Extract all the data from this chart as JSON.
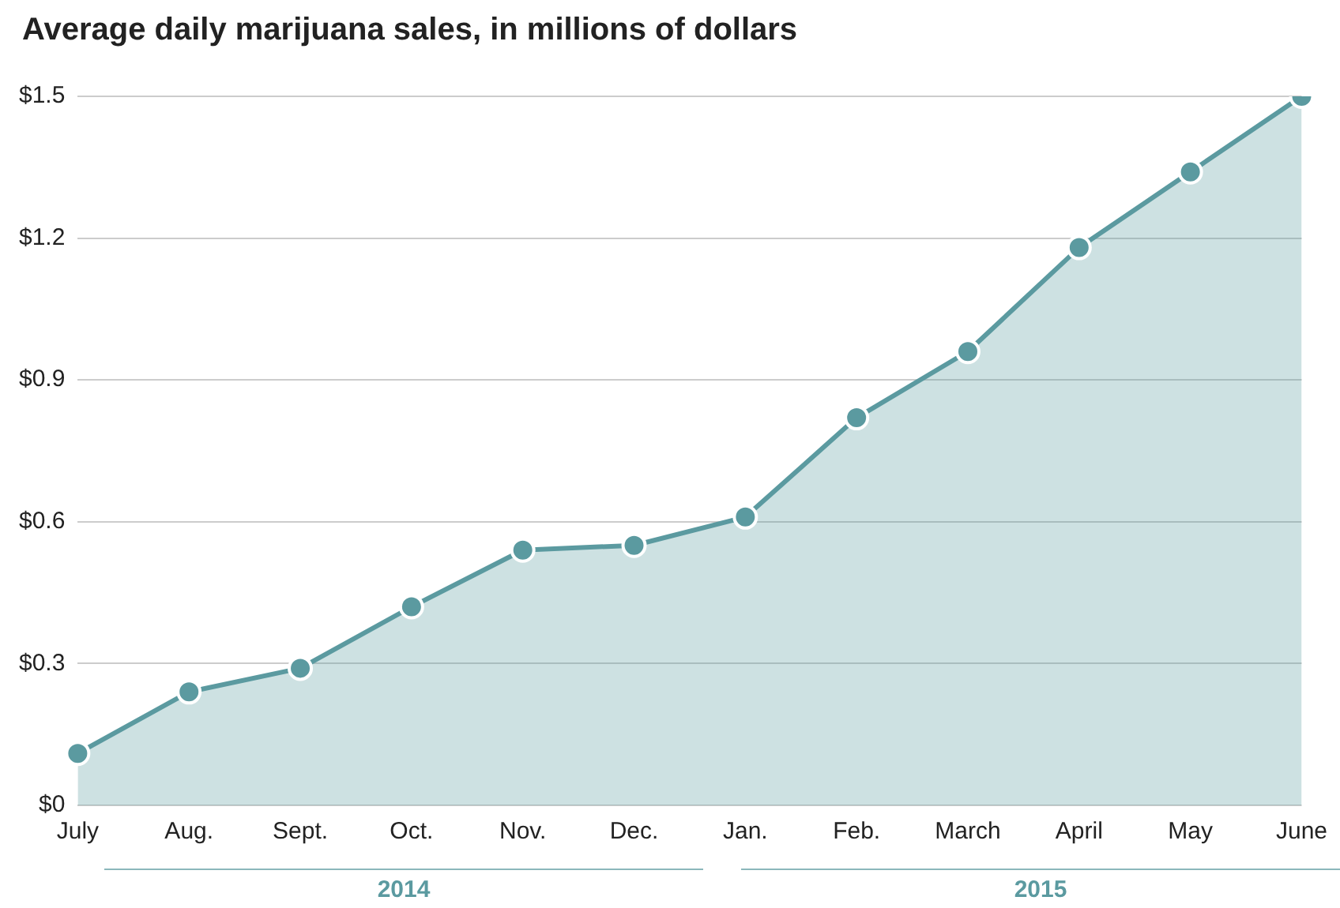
{
  "chart_data": {
    "type": "area",
    "title": "Average daily marijuana sales, in millions of dollars",
    "categories": [
      "July",
      "Aug.",
      "Sept.",
      "Oct.",
      "Nov.",
      "Dec.",
      "Jan.",
      "Feb.",
      "March",
      "April",
      "May",
      "June"
    ],
    "series": [
      {
        "color": "#5b9aa0",
        "values": [
          0.11,
          0.24,
          0.29,
          0.42,
          0.54,
          0.55,
          0.61,
          0.82,
          0.96,
          1.18,
          1.34,
          1.5
        ]
      }
    ],
    "ylim": [
      0,
      1.5
    ],
    "yticks": [
      {
        "value": 0,
        "label": "$0"
      },
      {
        "value": 0.3,
        "label": "$0.3"
      },
      {
        "value": 0.6,
        "label": "$0.6"
      },
      {
        "value": 0.9,
        "label": "$0.9"
      },
      {
        "value": 1.2,
        "label": "$1.2"
      },
      {
        "value": 1.5,
        "label": "$1.5"
      }
    ],
    "grid": "y",
    "marker": "circle",
    "legend": false,
    "annotations": [
      "2014",
      "2015"
    ]
  }
}
